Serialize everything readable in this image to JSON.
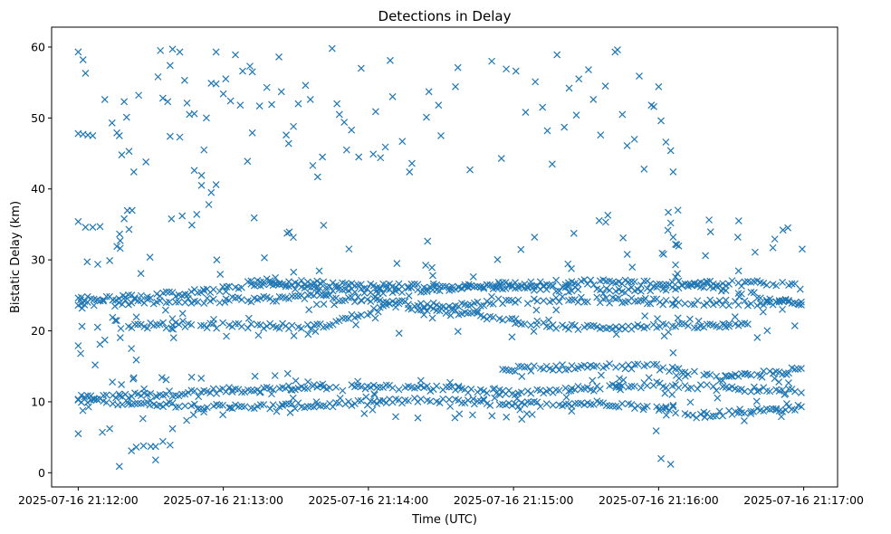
{
  "chart_data": {
    "type": "scatter",
    "title": "Detections in Delay",
    "xlabel": "Time (UTC)",
    "ylabel": "Bistatic Delay (km)",
    "x_ticks": [
      "2025-07-16 21:12:00",
      "2025-07-16 21:13:00",
      "2025-07-16 21:14:00",
      "2025-07-16 21:15:00",
      "2025-07-16 21:16:00",
      "2025-07-16 21:17:00"
    ],
    "y_ticks": [
      0,
      10,
      20,
      30,
      40,
      50,
      60
    ],
    "xlim": [
      "2025-07-16 21:11:49",
      "2025-07-16 21:17:14"
    ],
    "ylim": [
      -2,
      62.8
    ],
    "x_start": "2025-07-16 21:12:00",
    "x_end": "2025-07-16 21:17:00",
    "marker": "x",
    "marker_color": "#1f77b4",
    "grid": false,
    "legend": "none",
    "series": [
      {
        "points": [
          [
            "21:12:00",
            59.3
          ],
          [
            "21:12:02",
            58.2
          ],
          [
            "21:12:03",
            56.3
          ],
          [
            "21:12:00",
            47.8
          ],
          [
            "21:12:02",
            47.7
          ],
          [
            "21:12:04",
            47.6
          ],
          [
            "21:12:06",
            47.5
          ],
          [
            "21:12:00",
            35.4
          ],
          [
            "21:12:03",
            34.6
          ],
          [
            "21:12:06",
            34.6
          ],
          [
            "21:12:09",
            34.7
          ],
          [
            "21:12:00",
            17.9
          ],
          [
            "21:12:01",
            16.8
          ],
          [
            "21:12:00",
            5.5
          ],
          [
            "21:12:11",
            52.6
          ],
          [
            "21:12:14",
            49.3
          ],
          [
            "21:12:16",
            47.9
          ],
          [
            "21:12:17",
            47.5
          ],
          [
            "21:12:19",
            52.3
          ],
          [
            "21:12:20",
            50.1
          ],
          [
            "21:12:18",
            44.8
          ],
          [
            "21:12:21",
            45.3
          ],
          [
            "21:12:23",
            42.4
          ],
          [
            "21:12:25",
            53.2
          ],
          [
            "21:12:28",
            43.8
          ],
          [
            "21:12:19",
            35.8
          ],
          [
            "21:12:21",
            34.3
          ],
          [
            "21:12:13",
            29.9
          ],
          [
            "21:12:16",
            31.9
          ],
          [
            "21:12:08",
            20.5
          ],
          [
            "21:12:07",
            15.2
          ],
          [
            "21:12:09",
            18.1
          ],
          [
            "21:12:11",
            18.7
          ],
          [
            "21:12:10",
            5.7
          ],
          [
            "21:12:13",
            6.2
          ],
          [
            "21:12:17",
            0.9
          ],
          [
            "21:12:22",
            17.5
          ],
          [
            "21:12:24",
            15.9
          ],
          [
            "21:12:23",
            13.4
          ],
          [
            "21:12:22",
            3.1
          ],
          [
            "21:12:24",
            3.6
          ],
          [
            "21:12:27",
            3.8
          ],
          [
            "21:12:30",
            3.7
          ],
          [
            "21:12:32",
            3.7
          ],
          [
            "21:12:32",
            1.8
          ],
          [
            "21:12:35",
            4.4
          ],
          [
            "21:12:38",
            3.9
          ],
          [
            "21:12:39",
            6.2
          ],
          [
            "21:12:33",
            55.8
          ],
          [
            "21:12:34",
            59.5
          ],
          [
            "21:12:35",
            52.8
          ],
          [
            "21:12:37",
            52.3
          ],
          [
            "21:12:38",
            57.4
          ],
          [
            "21:12:39",
            59.7
          ],
          [
            "21:12:42",
            59.3
          ],
          [
            "21:12:38",
            47.4
          ],
          [
            "21:12:42",
            47.3
          ],
          [
            "21:12:44",
            55.3
          ],
          [
            "21:12:45",
            52.1
          ],
          [
            "21:12:46",
            50.5
          ],
          [
            "21:12:48",
            50.6
          ],
          [
            "21:12:43",
            36.2
          ],
          [
            "21:12:47",
            34.9
          ],
          [
            "21:12:49",
            36.4
          ],
          [
            "21:12:51",
            40.5
          ],
          [
            "21:12:51",
            41.9
          ],
          [
            "21:12:48",
            42.6
          ],
          [
            "21:12:52",
            45.5
          ],
          [
            "21:12:53",
            50.0
          ],
          [
            "21:12:55",
            54.9
          ],
          [
            "21:12:57",
            59.3
          ],
          [
            "21:12:57",
            54.8
          ],
          [
            "21:12:54",
            37.8
          ],
          [
            "21:12:55",
            39.5
          ],
          [
            "21:12:57",
            40.6
          ],
          [
            "21:13:00",
            53.4
          ],
          [
            "21:13:01",
            55.5
          ],
          [
            "21:13:03",
            52.4
          ],
          [
            "21:13:05",
            58.9
          ],
          [
            "21:13:07",
            51.8
          ],
          [
            "21:13:08",
            56.6
          ],
          [
            "21:13:10",
            43.9
          ],
          [
            "21:13:11",
            57.3
          ],
          [
            "21:13:12",
            56.5
          ],
          [
            "21:13:12",
            47.9
          ],
          [
            "21:13:15",
            51.7
          ],
          [
            "21:13:17",
            30.3
          ],
          [
            "21:13:18",
            54.3
          ],
          [
            "21:13:20",
            51.9
          ],
          [
            "21:13:23",
            58.6
          ],
          [
            "21:13:24",
            53.7
          ],
          [
            "21:13:26",
            47.6
          ],
          [
            "21:13:27",
            46.4
          ],
          [
            "21:13:29",
            48.8
          ],
          [
            "21:13:31",
            52.0
          ],
          [
            "21:13:34",
            54.6
          ],
          [
            "21:13:36",
            52.6
          ],
          [
            "21:13:37",
            43.3
          ],
          [
            "21:13:39",
            41.7
          ],
          [
            "21:13:41",
            44.5
          ],
          [
            "21:13:45",
            59.8
          ],
          [
            "21:13:47",
            52.0
          ],
          [
            "21:13:48",
            50.5
          ],
          [
            "21:13:50",
            49.4
          ],
          [
            "21:13:51",
            45.5
          ],
          [
            "21:13:53",
            48.3
          ],
          [
            "21:13:56",
            44.5
          ],
          [
            "21:13:57",
            57.0
          ],
          [
            "21:14:02",
            44.9
          ],
          [
            "21:14:03",
            50.9
          ],
          [
            "21:14:05",
            44.4
          ],
          [
            "21:14:07",
            45.9
          ],
          [
            "21:14:09",
            58.1
          ],
          [
            "21:14:10",
            53.0
          ],
          [
            "21:14:14",
            46.7
          ],
          [
            "21:14:17",
            42.4
          ],
          [
            "21:14:18",
            43.6
          ],
          [
            "21:14:24",
            50.1
          ],
          [
            "21:14:25",
            53.7
          ],
          [
            "21:14:29",
            51.8
          ],
          [
            "21:14:30",
            47.5
          ],
          [
            "21:14:36",
            54.4
          ],
          [
            "21:14:37",
            57.1
          ],
          [
            "21:14:42",
            42.7
          ],
          [
            "21:14:51",
            58.0
          ],
          [
            "21:14:55",
            44.3
          ],
          [
            "21:14:57",
            56.9
          ],
          [
            "21:15:01",
            56.6
          ],
          [
            "21:15:05",
            50.8
          ],
          [
            "21:15:09",
            55.1
          ],
          [
            "21:15:12",
            51.5
          ],
          [
            "21:15:14",
            48.2
          ],
          [
            "21:15:16",
            43.5
          ],
          [
            "21:15:18",
            58.9
          ],
          [
            "21:15:21",
            48.7
          ],
          [
            "21:15:23",
            54.2
          ],
          [
            "21:15:26",
            50.4
          ],
          [
            "21:15:27",
            55.5
          ],
          [
            "21:15:31",
            56.8
          ],
          [
            "21:15:33",
            52.6
          ],
          [
            "21:15:36",
            47.6
          ],
          [
            "21:15:38",
            54.5
          ],
          [
            "21:15:42",
            59.3
          ],
          [
            "21:15:43",
            59.6
          ],
          [
            "21:15:45",
            50.5
          ],
          [
            "21:15:47",
            46.1
          ],
          [
            "21:15:50",
            47.0
          ],
          [
            "21:15:52",
            55.9
          ],
          [
            "21:15:54",
            42.8
          ],
          [
            "21:15:57",
            51.8
          ],
          [
            "21:15:58",
            51.6
          ],
          [
            "21:16:00",
            54.4
          ],
          [
            "21:16:01",
            49.6
          ],
          [
            "21:16:03",
            46.6
          ],
          [
            "21:16:05",
            45.4
          ],
          [
            "21:16:06",
            42.4
          ],
          [
            "21:16:04",
            36.7
          ],
          [
            "21:16:05",
            35.2
          ],
          [
            "21:16:06",
            33.2
          ],
          [
            "21:16:07",
            32.2
          ],
          [
            "21:16:07",
            29.3
          ],
          [
            "21:16:06",
            16.9
          ],
          [
            "21:16:05",
            1.2
          ],
          [
            "21:16:06",
            9.3
          ],
          [
            "21:16:06",
            9.5
          ],
          [
            "21:16:07",
            27.6
          ],
          [
            "21:16:06",
            23.8
          ],
          [
            "21:16:07",
            23.6
          ],
          [
            "21:16:08",
            37.0
          ],
          [
            "21:16:03",
            9.3
          ],
          [
            "21:16:01",
            2.0
          ],
          [
            "21:15:59",
            5.9
          ],
          [
            "21:15:56",
            13.4
          ]
        ]
      }
    ]
  }
}
